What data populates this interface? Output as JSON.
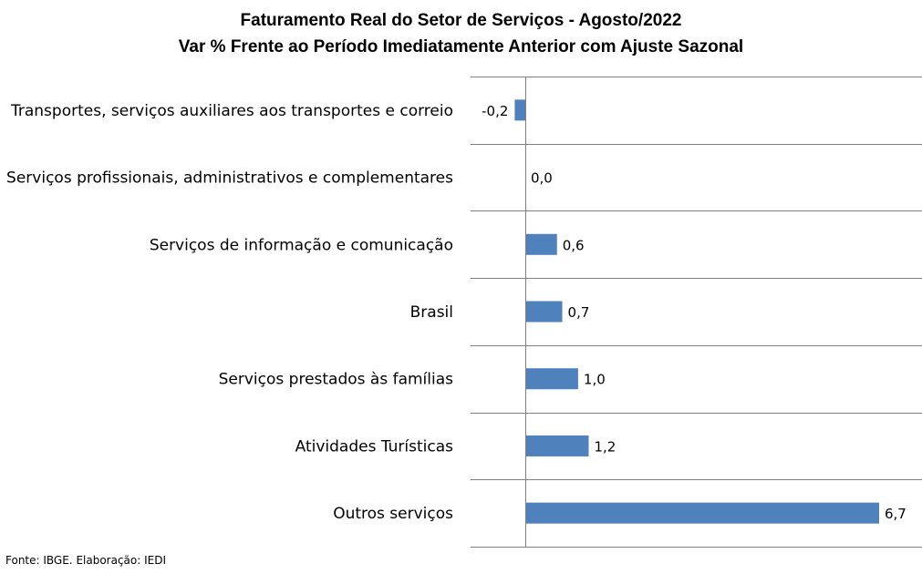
{
  "chart_data": {
    "type": "bar",
    "orientation": "horizontal",
    "title": "Faturamento Real do Setor de Serviços - Agosto/2022",
    "subtitle": "Var % Frente ao Período Imediatamente Anterior com Ajuste Sazonal",
    "categories": [
      "Transportes, serviços auxiliares aos transportes e correio",
      "Serviços profissionais, administrativos e complementares",
      "Serviços de informação e comunicação",
      "Brasil",
      "Serviços prestados às famílias",
      "Atividades Turísticas",
      "Outros serviços"
    ],
    "values": [
      -0.2,
      0.0,
      0.6,
      0.7,
      1.0,
      1.2,
      6.7
    ],
    "data_labels": [
      "-0,2",
      "0,0",
      "0,6",
      "0,7",
      "1,0",
      "1,2",
      "6,7"
    ],
    "xlim": [
      -1.0,
      7.5
    ],
    "grid": true,
    "bar_color": "#4f81bd"
  },
  "source": "Fonte: IBGE. Elaboração: IEDI"
}
